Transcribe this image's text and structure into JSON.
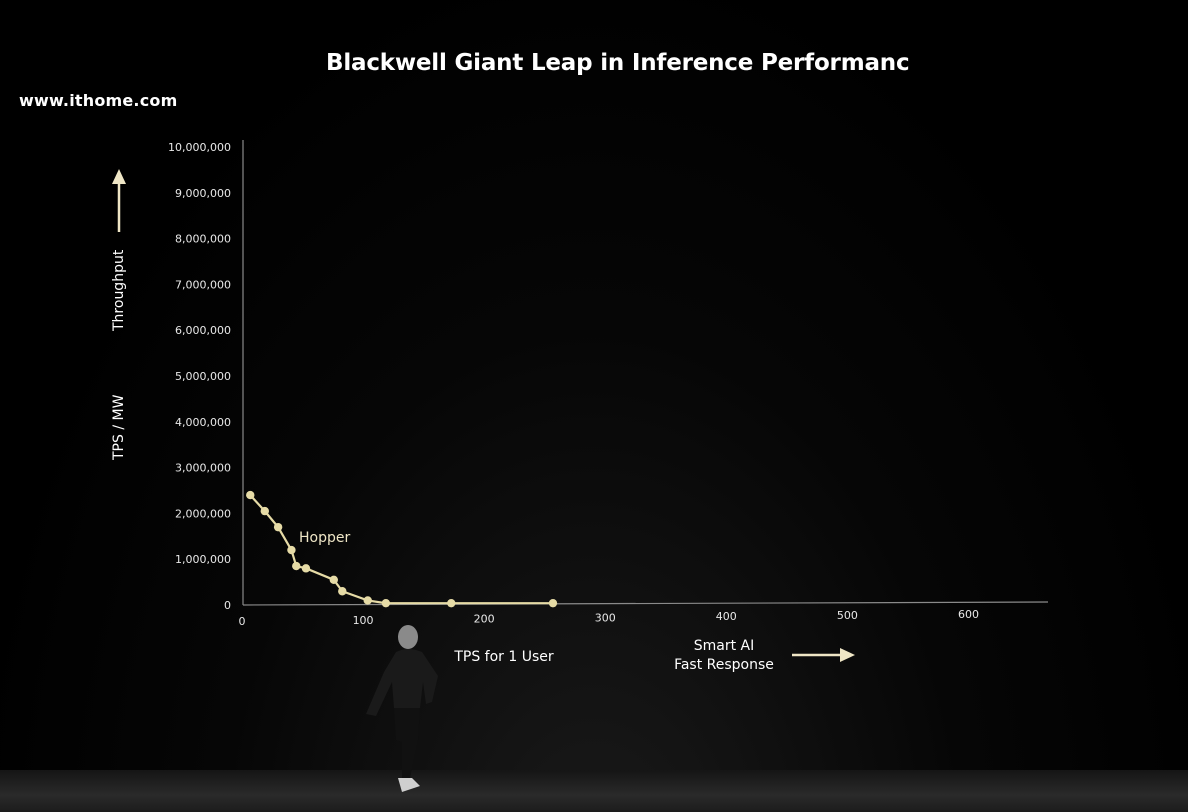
{
  "watermark": "www.ithome.com",
  "chart_data": {
    "type": "line",
    "title": "Blackwell Giant Leap in Inference Performanc",
    "xlabel": "TPS for 1 User",
    "ylabel": "TPS / MW",
    "y_arrow_label": "Throughput",
    "x_arrow_label_lines": [
      "Smart AI",
      "Fast Response"
    ],
    "xlim": [
      0,
      650
    ],
    "ylim": [
      0,
      10000000
    ],
    "x_ticks": [
      0,
      100,
      200,
      300,
      400,
      500,
      600
    ],
    "x_tick_labels": [
      "0",
      "100",
      "200",
      "300",
      "400",
      "500",
      "600"
    ],
    "y_ticks": [
      0,
      1000000,
      2000000,
      3000000,
      4000000,
      5000000,
      6000000,
      7000000,
      8000000,
      9000000,
      10000000
    ],
    "y_tick_labels": [
      "0",
      "1,000,000",
      "2,000,000",
      "3,000,000",
      "4,000,000",
      "5,000,000",
      "6,000,000",
      "7,000,000",
      "8,000,000",
      "9,000,000",
      "10,000,000"
    ],
    "grid": false,
    "series": [
      {
        "name": "Hopper",
        "color": "#e6dba6",
        "x": [
          6,
          18,
          29,
          40,
          44,
          52,
          75,
          82,
          103,
          118,
          172,
          256
        ],
        "y": [
          2400000,
          2050000,
          1700000,
          1200000,
          850000,
          800000,
          550000,
          300000,
          100000,
          40000,
          40000,
          40000
        ]
      }
    ]
  }
}
